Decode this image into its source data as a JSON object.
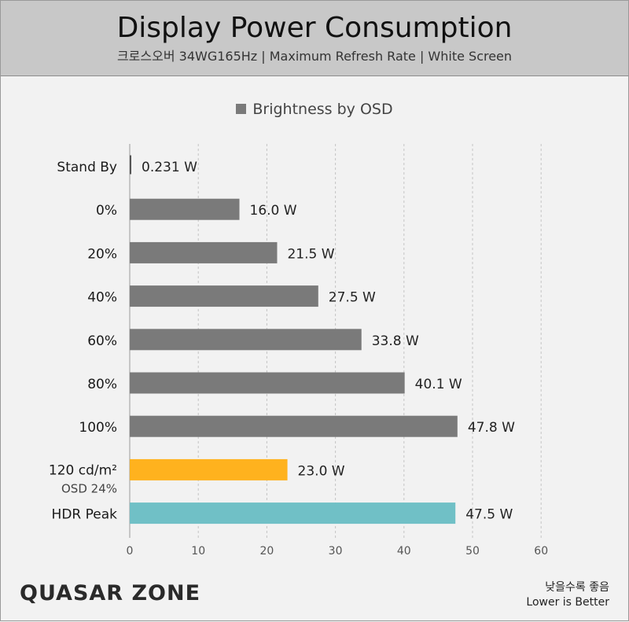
{
  "header": {
    "title": "Display Power Consumption",
    "subtitle": "크로스오버 34WG165Hz  |  Maximum Refresh Rate  |  White Screen"
  },
  "legend": {
    "label": "Brightness by OSD",
    "color": "#7a7a7a"
  },
  "footer": {
    "logo": "QUASAR ZONE",
    "note_ko": "낮을수록 좋음",
    "note_en": "Lower is Better"
  },
  "chart_data": {
    "type": "bar",
    "orientation": "horizontal",
    "title": "Display Power Consumption",
    "xlim": [
      0,
      60
    ],
    "xticks": [
      0,
      10,
      20,
      30,
      40,
      50,
      60
    ],
    "grid": true,
    "legend_position": "top",
    "unit": "W",
    "bars": [
      {
        "label": "Stand By",
        "sublabel": "",
        "value": 0.231,
        "value_label": "0.231 W",
        "color": "#7a7a7a"
      },
      {
        "label": "0%",
        "sublabel": "",
        "value": 16.0,
        "value_label": "16.0 W",
        "color": "#7a7a7a"
      },
      {
        "label": "20%",
        "sublabel": "",
        "value": 21.5,
        "value_label": "21.5 W",
        "color": "#7a7a7a"
      },
      {
        "label": "40%",
        "sublabel": "",
        "value": 27.5,
        "value_label": "27.5 W",
        "color": "#7a7a7a"
      },
      {
        "label": "60%",
        "sublabel": "",
        "value": 33.8,
        "value_label": "33.8 W",
        "color": "#7a7a7a"
      },
      {
        "label": "80%",
        "sublabel": "",
        "value": 40.1,
        "value_label": "40.1 W",
        "color": "#7a7a7a"
      },
      {
        "label": "100%",
        "sublabel": "",
        "value": 47.8,
        "value_label": "47.8 W",
        "color": "#7a7a7a"
      },
      {
        "label": "120 cd/m²",
        "sublabel": "OSD 24%",
        "value": 23.0,
        "value_label": "23.0 W",
        "color": "#ffb21e"
      },
      {
        "label": "HDR Peak",
        "sublabel": "",
        "value": 47.5,
        "value_label": "47.5 W",
        "color": "#70c0c6"
      }
    ]
  }
}
